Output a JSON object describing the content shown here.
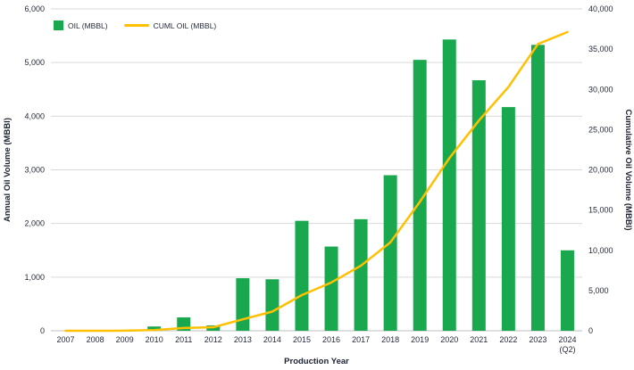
{
  "chart_data": {
    "type": "bar",
    "subtype": "combo-bar-line-dual-axis",
    "title": "",
    "xlabel": "Production Year",
    "ylabel_left": "Annual Oil Volume (MBBl)",
    "ylabel_right": "Cumulative Oil Volume (MBBl)",
    "categories": [
      "2007",
      "2008",
      "2009",
      "2010",
      "2011",
      "2012",
      "2013",
      "2014",
      "2015",
      "2016",
      "2017",
      "2018",
      "2019",
      "2020",
      "2021",
      "2022",
      "2023",
      "2024 (Q2)"
    ],
    "series": [
      {
        "name": "OIL (MBBL)",
        "type": "bar",
        "axis": "left",
        "color": "#1aa84f",
        "values": [
          0,
          0,
          10,
          80,
          250,
          100,
          980,
          960,
          2050,
          1570,
          2080,
          2900,
          5050,
          5430,
          4670,
          4170,
          5330,
          1500
        ]
      },
      {
        "name": "CUML OIL (MBBL)",
        "type": "line",
        "axis": "right",
        "color": "#ffc000",
        "values": [
          0,
          0,
          10,
          90,
          340,
          440,
          1420,
          2380,
          4430,
          6000,
          8080,
          10980,
          16030,
          21460,
          26130,
          30300,
          35630,
          37130
        ]
      }
    ],
    "left_axis": {
      "min": 0,
      "max": 6000,
      "step": 1000
    },
    "right_axis": {
      "min": 0,
      "max": 40000,
      "step": 5000
    },
    "grid": true,
    "legend_position": "top-left"
  },
  "legend": {
    "items": [
      {
        "label": "OIL (MBBL)",
        "color": "#1aa84f",
        "shape": "square"
      },
      {
        "label": "CUML OIL (MBBL)",
        "color": "#ffc000",
        "shape": "line"
      }
    ]
  },
  "colors": {
    "bar": "#1aa84f",
    "line": "#ffc000",
    "gridline": "#d9d9d9",
    "axis_line": "#bfbfbf",
    "tick_text": "#242b3a",
    "title_text": "#1c2333",
    "background": "#ffffff"
  }
}
